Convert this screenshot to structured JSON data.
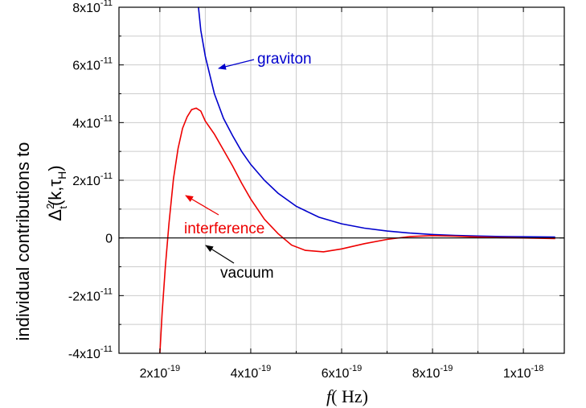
{
  "chart_data": {
    "type": "line",
    "xlabel_italic": "f",
    "xlabel_rest": "( Hz)",
    "ylabel_line1": "individual contributions to",
    "ylabel_line2_base": "Δ",
    "ylabel_line2_sup": "2",
    "ylabel_line2_sub": "t",
    "ylabel_line2_mid": "(k,τ",
    "ylabel_line2_sub2": "H",
    "ylabel_line2_end": ")",
    "xlim": [
      1.1e-19,
      1.09e-18
    ],
    "ylim": [
      -4e-11,
      8e-11
    ],
    "grid": true,
    "x_ticks": [
      {
        "value": 2e-19,
        "base": "2x10",
        "exp": "-19"
      },
      {
        "value": 4e-19,
        "base": "4x10",
        "exp": "-19"
      },
      {
        "value": 6e-19,
        "base": "6x10",
        "exp": "-19"
      },
      {
        "value": 8e-19,
        "base": "8x10",
        "exp": "-19"
      },
      {
        "value": 1e-18,
        "base": "1x10",
        "exp": "-18"
      }
    ],
    "y_ticks": [
      {
        "value": -4e-11,
        "base": "-4x10",
        "exp": "-11"
      },
      {
        "value": -2e-11,
        "base": "-2x10",
        "exp": "-11"
      },
      {
        "value": 0,
        "base": "0",
        "exp": ""
      },
      {
        "value": 2e-11,
        "base": "2x10",
        "exp": "-11"
      },
      {
        "value": 4e-11,
        "base": "4x10",
        "exp": "-11"
      },
      {
        "value": 6e-11,
        "base": "6x10",
        "exp": "-11"
      },
      {
        "value": 8e-11,
        "base": "8x10",
        "exp": "-11"
      }
    ],
    "series": [
      {
        "name": "graviton",
        "color": "#0000cc",
        "x": [
          2.85e-19,
          2.9e-19,
          3e-19,
          3.2e-19,
          3.4e-19,
          3.6e-19,
          3.8e-19,
          4e-19,
          4.3e-19,
          4.6e-19,
          5e-19,
          5.5e-19,
          6e-19,
          6.5e-19,
          7e-19,
          7.5e-19,
          8e-19,
          8.5e-19,
          9e-19,
          9.5e-19,
          1e-18,
          1.07e-18
        ],
        "y": [
          8e-11,
          7.2e-11,
          6.3e-11,
          5e-11,
          4.15e-11,
          3.55e-11,
          3e-11,
          2.55e-11,
          2e-11,
          1.55e-11,
          1.1e-11,
          7.2e-12,
          4.9e-12,
          3.4e-12,
          2.4e-12,
          1.7e-12,
          1.2e-12,
          8.5e-13,
          6.5e-13,
          5e-13,
          4e-13,
          3e-13
        ]
      },
      {
        "name": "interference",
        "color": "#ee0000",
        "x": [
          2e-19,
          2.05e-19,
          2.12e-19,
          2.2e-19,
          2.3e-19,
          2.4e-19,
          2.5e-19,
          2.6e-19,
          2.7e-19,
          2.8e-19,
          2.9e-19,
          3e-19,
          3.2e-19,
          3.4e-19,
          3.6e-19,
          3.8e-19,
          4e-19,
          4.3e-19,
          4.6e-19,
          4.9e-19,
          5.2e-19,
          5.6e-19,
          6e-19,
          6.5e-19,
          7e-19,
          7.5e-19,
          8e-19,
          8.5e-19,
          9e-19,
          9.5e-19,
          1e-18,
          1.07e-18
        ],
        "y": [
          -4e-11,
          -2.6e-11,
          -1e-11,
          5e-12,
          2.05e-11,
          3.1e-11,
          3.8e-11,
          4.2e-11,
          4.45e-11,
          4.5e-11,
          4.4e-11,
          4.05e-11,
          3.6e-11,
          3.05e-11,
          2.5e-11,
          1.9e-11,
          1.35e-11,
          6.5e-12,
          1.5e-12,
          -2.5e-12,
          -4.3e-12,
          -4.8e-12,
          -3.8e-12,
          -2e-12,
          -5e-13,
          5e-13,
          8e-13,
          6e-13,
          3e-13,
          1e-13,
          0.0,
          -2e-13
        ]
      },
      {
        "name": "vacuum",
        "color": "#000000",
        "x": [
          1.1e-19,
          1.09e-18
        ],
        "y": [
          0,
          0
        ]
      }
    ],
    "annotations": [
      {
        "text": "graviton",
        "color": "#0000cc"
      },
      {
        "text": "interference",
        "color": "#ee0000"
      },
      {
        "text": "vacuum",
        "color": "#000000"
      }
    ]
  }
}
